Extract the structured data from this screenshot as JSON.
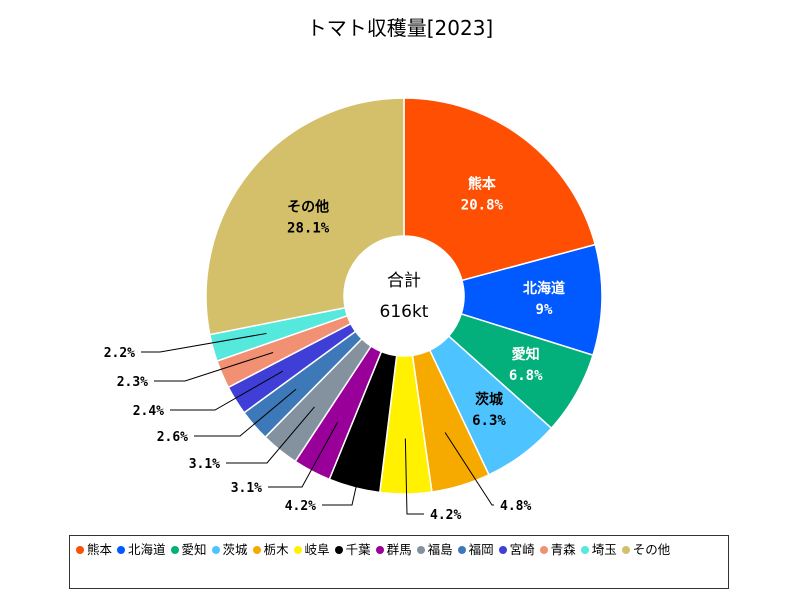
{
  "title": "トマト収穫量[2023]",
  "center": {
    "label": "合計",
    "total": "616kt"
  },
  "chart_data": {
    "type": "pie",
    "title": "トマト収穫量[2023]",
    "total": "616kt",
    "categories": [
      "熊本",
      "北海道",
      "愛知",
      "茨城",
      "栃木",
      "岐阜",
      "千葉",
      "群馬",
      "福島",
      "福岡",
      "宮崎",
      "青森",
      "埼玉",
      "その他"
    ],
    "values": [
      20.8,
      9,
      6.8,
      6.3,
      4.8,
      4.2,
      4.2,
      3.1,
      3.1,
      2.6,
      2.4,
      2.3,
      2.2,
      28.1
    ],
    "labels": [
      "20.8%",
      "9%",
      "6.8%",
      "6.3%",
      "4.8%",
      "4.2%",
      "4.2%",
      "3.1%",
      "3.1%",
      "2.6%",
      "2.4%",
      "2.3%",
      "2.2%",
      "28.1%"
    ],
    "colors": [
      "#ff4f02",
      "#005aff",
      "#03af7a",
      "#4dc4ff",
      "#f6aa00",
      "#fff100",
      "#000000",
      "#990099",
      "#84919e",
      "#3d79b8",
      "#3f3fd8",
      "#f19072",
      "#55e8dc",
      "#d4c06a"
    ],
    "legend": "bottom"
  }
}
